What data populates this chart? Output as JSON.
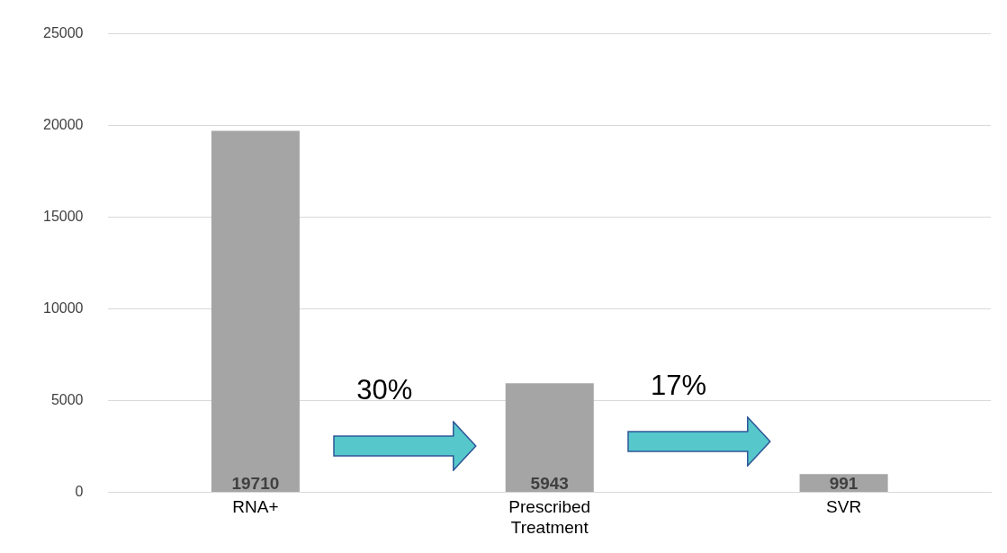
{
  "chart_data": {
    "type": "bar",
    "categories": [
      "RNA+",
      "Prescribed Treatment",
      "SVR"
    ],
    "values": [
      19710,
      5943,
      991
    ],
    "color": "#a5a5a5",
    "ylim": [
      0,
      25000
    ],
    "yticks": [
      0,
      5000,
      10000,
      15000,
      20000,
      25000
    ],
    "grid": "y",
    "legend": false,
    "data_labels": true,
    "annotations": [
      "30%",
      "17%"
    ]
  }
}
